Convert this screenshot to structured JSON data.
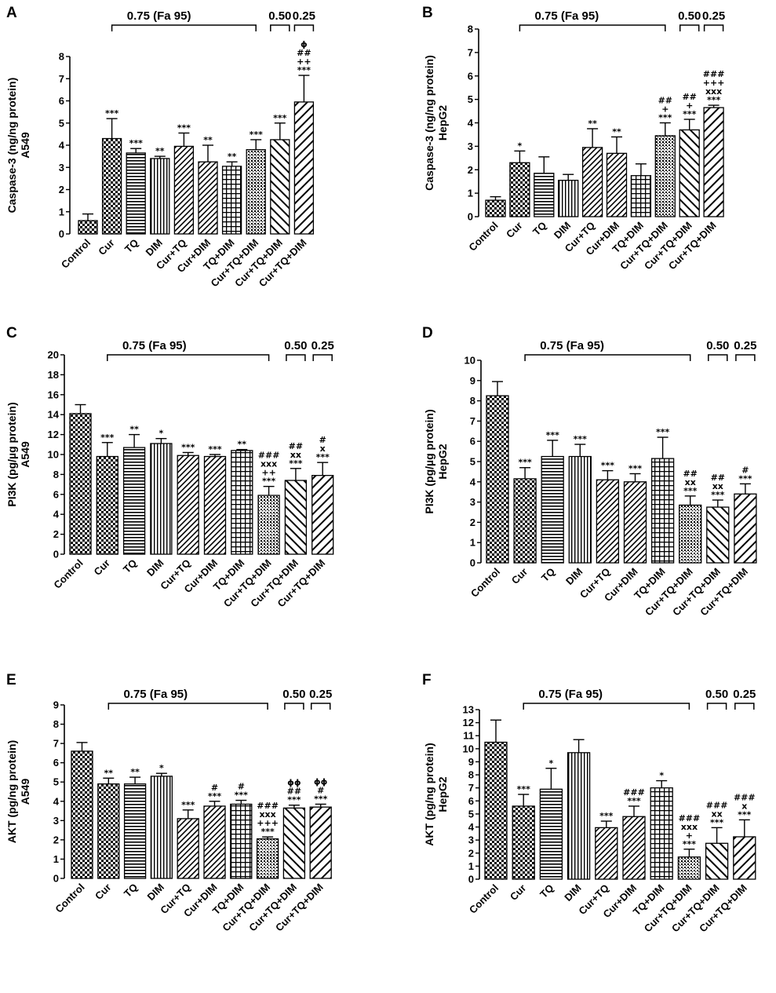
{
  "chart_data": [
    {
      "panel": "A",
      "type": "bar",
      "title": "",
      "ylabel": "Caspase-3 (ng/ng protein)",
      "ylabel2": "A549",
      "categories": [
        "Control",
        "Cur",
        "TQ",
        "DIM",
        "Cur+TQ",
        "Cur+DIM",
        "TQ+DIM",
        "Cur+TQ+DIM",
        "Cur+TQ+DIM",
        "Cur+TQ+DIM"
      ],
      "values": [
        0.6,
        4.3,
        3.65,
        3.4,
        3.95,
        3.25,
        3.05,
        3.8,
        4.25,
        5.95
      ],
      "errors": [
        0.3,
        0.9,
        0.2,
        0.1,
        0.6,
        0.75,
        0.2,
        0.45,
        0.75,
        1.2
      ],
      "patterns": [
        "check",
        "check",
        "hstripe",
        "vstripe",
        "diag",
        "diag",
        "grid",
        "dots",
        "backdiag",
        "diag-wide"
      ],
      "significance": [
        [],
        [
          "***"
        ],
        [
          "***"
        ],
        [
          "**"
        ],
        [
          "***"
        ],
        [
          "**"
        ],
        [
          "**"
        ],
        [
          "***"
        ],
        [
          "***"
        ],
        [
          "ϕ",
          "##",
          "++",
          "***"
        ]
      ],
      "ylim": [
        0,
        8
      ],
      "yticks": [
        0,
        1,
        2,
        3,
        4,
        5,
        6,
        7,
        8
      ],
      "dose_groups": [
        {
          "label": "0.75 (Fa 95)",
          "from": 1,
          "to": 7
        },
        {
          "label": "0.50",
          "from": 8,
          "to": 8
        },
        {
          "label": "0.25",
          "from": 9,
          "to": 9
        }
      ]
    },
    {
      "panel": "B",
      "type": "bar",
      "title": "",
      "ylabel": "Caspase-3 (ng/ng protein)",
      "ylabel2": "HepG2",
      "categories": [
        "Control",
        "Cur",
        "TQ",
        "DIM",
        "Cur+TQ",
        "Cur+DIM",
        "TQ+DIM",
        "Cur+TQ+DIM",
        "Cur+TQ+DIM",
        "Cur+TQ+DIM"
      ],
      "values": [
        0.7,
        2.3,
        1.85,
        1.55,
        2.95,
        2.7,
        1.75,
        3.45,
        3.7,
        4.65
      ],
      "errors": [
        0.15,
        0.5,
        0.7,
        0.25,
        0.8,
        0.7,
        0.5,
        0.55,
        0.45,
        0.1
      ],
      "patterns": [
        "check",
        "check",
        "hstripe",
        "vstripe",
        "diag",
        "diag",
        "grid",
        "dots",
        "backdiag",
        "diag-wide"
      ],
      "significance": [
        [],
        [
          "*"
        ],
        [],
        [],
        [
          "**"
        ],
        [
          "**"
        ],
        [],
        [
          "##",
          "+",
          "***"
        ],
        [
          "##",
          "+",
          "***"
        ],
        [
          "###",
          "+++",
          "xxx",
          "***"
        ]
      ],
      "ylim": [
        0,
        8
      ],
      "yticks": [
        0,
        1,
        2,
        3,
        4,
        5,
        6,
        7,
        8
      ],
      "dose_groups": [
        {
          "label": "0.75 (Fa 95)",
          "from": 1,
          "to": 7
        },
        {
          "label": "0.50",
          "from": 8,
          "to": 8
        },
        {
          "label": "0.25",
          "from": 9,
          "to": 9
        }
      ]
    },
    {
      "panel": "C",
      "type": "bar",
      "title": "",
      "ylabel": "PI3K (pg/µg protein)",
      "ylabel2": "A549",
      "categories": [
        "Control",
        "Cur",
        "TQ",
        "DIM",
        "Cur+TQ",
        "Cur+DIM",
        "TQ+DIM",
        "Cur+TQ+DIM",
        "Cur+TQ+DIM",
        "Cur+TQ+DIM"
      ],
      "values": [
        14.1,
        9.8,
        10.7,
        11.1,
        9.9,
        9.8,
        10.4,
        5.9,
        7.4,
        7.9
      ],
      "errors": [
        0.9,
        1.4,
        1.3,
        0.5,
        0.3,
        0.2,
        0.1,
        0.9,
        1.2,
        1.3
      ],
      "patterns": [
        "check",
        "check",
        "hstripe",
        "vstripe",
        "diag",
        "diag",
        "grid",
        "dots",
        "backdiag",
        "diag-wide"
      ],
      "significance": [
        [],
        [
          "***"
        ],
        [
          "**"
        ],
        [
          "*"
        ],
        [
          "***"
        ],
        [
          "***"
        ],
        [
          "**"
        ],
        [
          "###",
          "xxx",
          "++",
          "***"
        ],
        [
          "##",
          "xx",
          "***"
        ],
        [
          "#",
          "x",
          "***"
        ]
      ],
      "ylim": [
        0,
        20
      ],
      "yticks": [
        0,
        2,
        4,
        6,
        8,
        10,
        12,
        14,
        16,
        18,
        20
      ],
      "dose_groups": [
        {
          "label": "0.75 (Fa 95)",
          "from": 1,
          "to": 7
        },
        {
          "label": "0.50",
          "from": 8,
          "to": 8
        },
        {
          "label": "0.25",
          "from": 9,
          "to": 9
        }
      ]
    },
    {
      "panel": "D",
      "type": "bar",
      "title": "",
      "ylabel": "PI3K (pg/µg protein)",
      "ylabel2": "HepG2",
      "categories": [
        "Control",
        "Cur",
        "TQ",
        "DIM",
        "Cur+TQ",
        "Cur+DIM",
        "TQ+DIM",
        "Cur+TQ+DIM",
        "Cur+TQ+DIM",
        "Cur+TQ+DIM"
      ],
      "values": [
        8.25,
        4.15,
        5.25,
        5.25,
        4.1,
        4.0,
        5.15,
        2.85,
        2.75,
        3.4
      ],
      "errors": [
        0.7,
        0.55,
        0.8,
        0.6,
        0.45,
        0.4,
        1.05,
        0.45,
        0.35,
        0.5
      ],
      "patterns": [
        "check",
        "check",
        "hstripe",
        "vstripe",
        "diag",
        "diag",
        "grid",
        "dots",
        "backdiag",
        "diag-wide"
      ],
      "significance": [
        [],
        [
          "***"
        ],
        [
          "***"
        ],
        [
          "***"
        ],
        [
          "***"
        ],
        [
          "***"
        ],
        [
          "***"
        ],
        [
          "##",
          "xx",
          "***"
        ],
        [
          "##",
          "xx",
          "***"
        ],
        [
          "#",
          "***"
        ]
      ],
      "ylim": [
        0,
        10
      ],
      "yticks": [
        0,
        1,
        2,
        3,
        4,
        5,
        6,
        7,
        8,
        9,
        10
      ],
      "dose_groups": [
        {
          "label": "0.75 (Fa 95)",
          "from": 1,
          "to": 7
        },
        {
          "label": "0.50",
          "from": 8,
          "to": 8
        },
        {
          "label": "0.25",
          "from": 9,
          "to": 9
        }
      ]
    },
    {
      "panel": "E",
      "type": "bar",
      "title": "",
      "ylabel": "AKT (pg/ng protein)",
      "ylabel2": "A549",
      "categories": [
        "Control",
        "Cur",
        "TQ",
        "DIM",
        "Cur+TQ",
        "Cur+DIM",
        "TQ+DIM",
        "Cur+TQ+DIM",
        "Cur+TQ+DIM",
        "Cur+TQ+DIM"
      ],
      "values": [
        6.6,
        4.9,
        4.9,
        5.3,
        3.1,
        3.75,
        3.85,
        2.05,
        3.65,
        3.7
      ],
      "errors": [
        0.45,
        0.3,
        0.35,
        0.15,
        0.45,
        0.25,
        0.2,
        0.1,
        0.15,
        0.15
      ],
      "patterns": [
        "check",
        "check",
        "hstripe",
        "vstripe",
        "diag",
        "diag",
        "grid",
        "dots",
        "backdiag",
        "diag-wide"
      ],
      "significance": [
        [],
        [
          "**"
        ],
        [
          "**"
        ],
        [
          "*"
        ],
        [
          "***"
        ],
        [
          "#",
          "***"
        ],
        [
          "#",
          "***"
        ],
        [
          "###",
          "xxx",
          "+++",
          "***"
        ],
        [
          "ϕϕ",
          "##",
          "***"
        ],
        [
          "ϕϕ",
          "#",
          "***"
        ]
      ],
      "ylim": [
        0,
        9
      ],
      "yticks": [
        0,
        1,
        2,
        3,
        4,
        5,
        6,
        7,
        8,
        9
      ],
      "dose_groups": [
        {
          "label": "0.75 (Fa 95)",
          "from": 1,
          "to": 7
        },
        {
          "label": "0.50",
          "from": 8,
          "to": 8
        },
        {
          "label": "0.25",
          "from": 9,
          "to": 9
        }
      ]
    },
    {
      "panel": "F",
      "type": "bar",
      "title": "",
      "ylabel": "AKT (pg/ng protein)",
      "ylabel2": "HepG2",
      "categories": [
        "Control",
        "Cur",
        "TQ",
        "DIM",
        "Cur+TQ",
        "Cur+DIM",
        "TQ+DIM",
        "Cur+TQ+DIM",
        "Cur+TQ+DIM",
        "Cur+TQ+DIM"
      ],
      "values": [
        10.5,
        5.6,
        6.9,
        9.7,
        3.95,
        4.8,
        7.0,
        1.7,
        2.75,
        3.25
      ],
      "errors": [
        1.7,
        0.9,
        1.6,
        1.0,
        0.5,
        0.8,
        0.55,
        0.6,
        1.2,
        1.3
      ],
      "patterns": [
        "check",
        "check",
        "hstripe",
        "vstripe",
        "diag",
        "diag",
        "grid",
        "dots",
        "backdiag",
        "diag-wide"
      ],
      "significance": [
        [],
        [
          "***"
        ],
        [
          "*"
        ],
        [],
        [
          "***"
        ],
        [
          "###",
          "***"
        ],
        [
          "*"
        ],
        [
          "###",
          "xxx",
          "+",
          "***"
        ],
        [
          "###",
          "xx",
          "***"
        ],
        [
          "###",
          "x",
          "***"
        ]
      ],
      "ylim": [
        0,
        13
      ],
      "yticks": [
        0,
        1,
        2,
        3,
        4,
        5,
        6,
        7,
        8,
        9,
        10,
        11,
        12,
        13
      ],
      "dose_groups": [
        {
          "label": "0.75 (Fa 95)",
          "from": 1,
          "to": 7
        },
        {
          "label": "0.50",
          "from": 8,
          "to": 8
        },
        {
          "label": "0.25",
          "from": 9,
          "to": 9
        }
      ]
    }
  ]
}
